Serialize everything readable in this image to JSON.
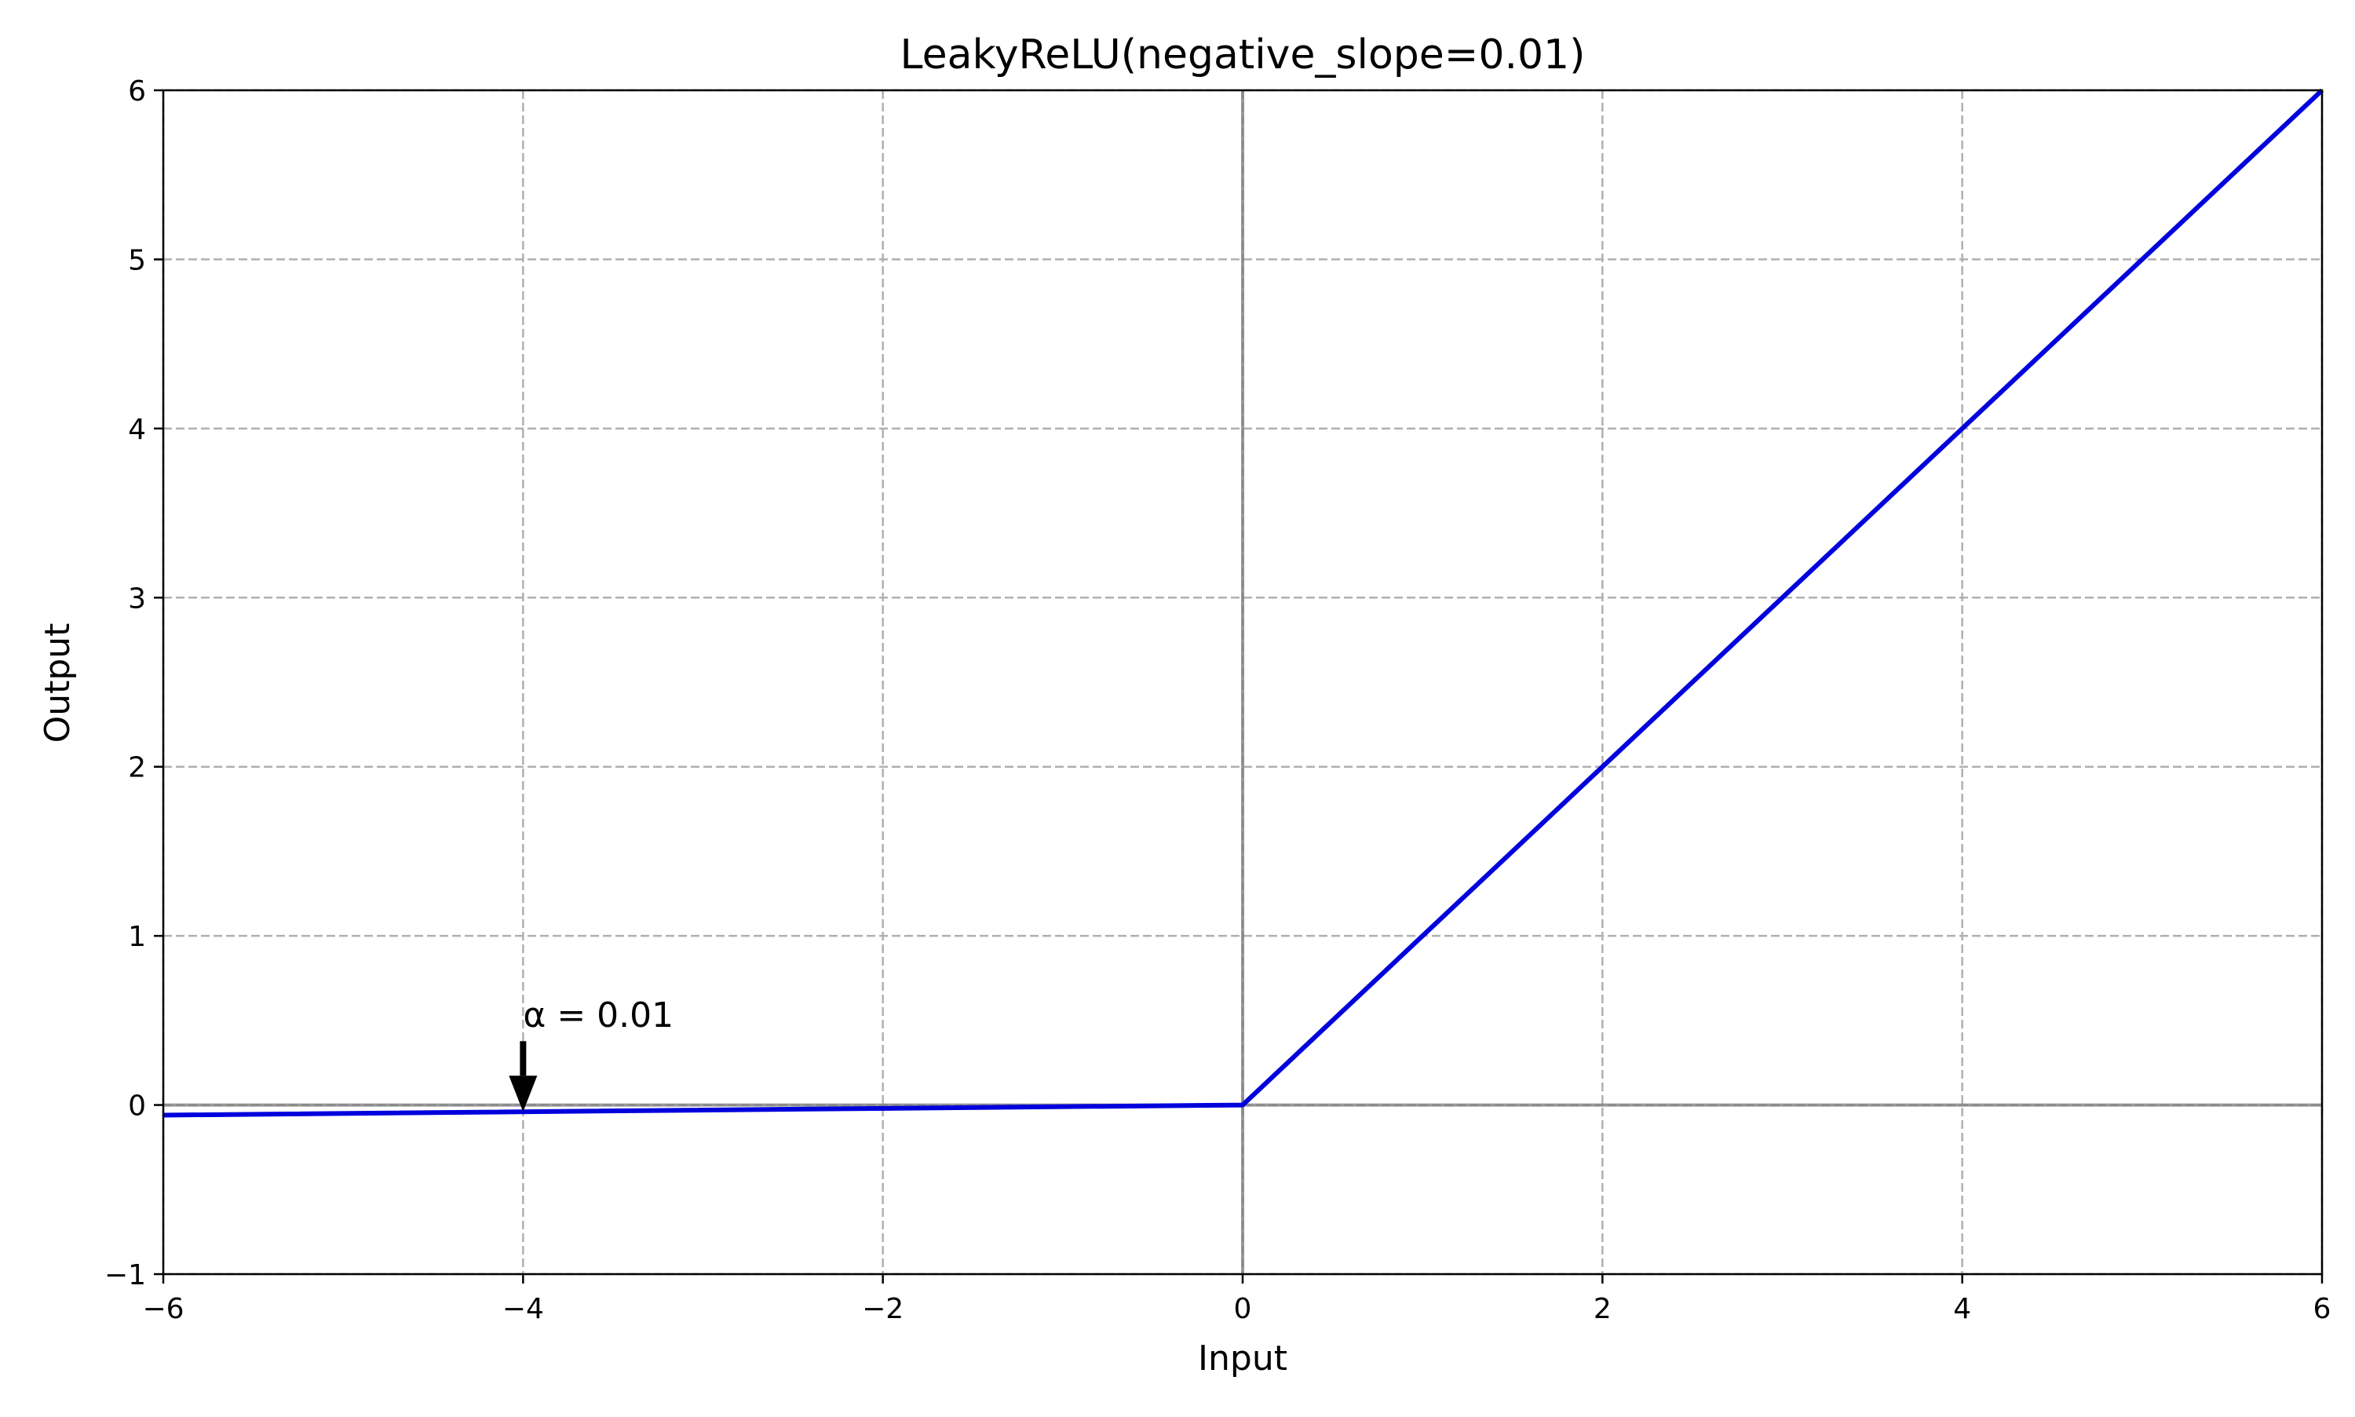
{
  "chart_data": {
    "type": "line",
    "title": "LeakyReLU(negative_slope=0.01)",
    "xlabel": "Input",
    "ylabel": "Output",
    "xlim": [
      -6,
      6
    ],
    "ylim": [
      -1,
      6
    ],
    "xticks": [
      -6,
      -4,
      -2,
      0,
      2,
      4,
      6
    ],
    "yticks": [
      -1,
      0,
      1,
      2,
      3,
      4,
      5,
      6
    ],
    "xtick_labels": [
      "−6",
      "−4",
      "−2",
      "0",
      "2",
      "4",
      "6"
    ],
    "ytick_labels": [
      "−1",
      "0",
      "1",
      "2",
      "3",
      "4",
      "5",
      "6"
    ],
    "grid": true,
    "reference_lines": {
      "x": 0,
      "y": 0
    },
    "series": [
      {
        "x": [
          -6,
          0,
          6
        ],
        "y": [
          -0.06,
          0,
          6
        ]
      }
    ],
    "annotations": [
      {
        "text": "α = 0.01",
        "arrow_to": [
          -4,
          -0.04
        ]
      }
    ]
  },
  "colors": {
    "series": "#0000dd",
    "grid": "#b0b0b0",
    "reference": "#808080",
    "axis": "#000000"
  }
}
